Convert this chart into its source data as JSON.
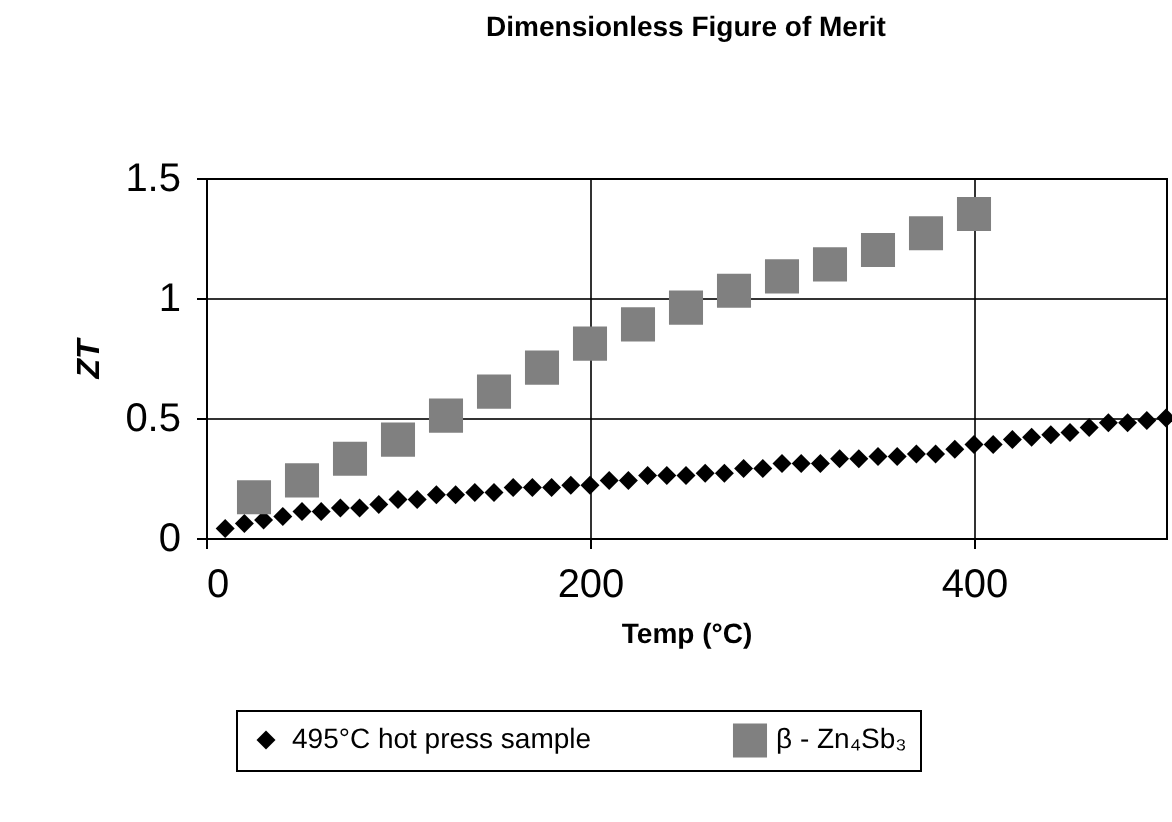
{
  "chart_data": {
    "type": "scatter",
    "title": "Dimensionless Figure of Merit",
    "xlabel": "Temp (°C)",
    "ylabel": "ZT",
    "xlim": [
      0,
      500
    ],
    "xticks": [
      0,
      200,
      400
    ],
    "ylim": [
      0,
      1.5
    ],
    "yticks": [
      0,
      0.5,
      1,
      1.5
    ],
    "grid": true,
    "legend": "bottom",
    "series": [
      {
        "name": "495°C hot press sample",
        "color": "#000000",
        "marker": "diamond",
        "x": [
          10,
          20,
          30,
          40,
          50,
          60,
          70,
          80,
          90,
          100,
          110,
          120,
          130,
          140,
          150,
          160,
          170,
          180,
          190,
          200,
          210,
          220,
          230,
          240,
          250,
          260,
          270,
          280,
          290,
          300,
          310,
          320,
          330,
          340,
          350,
          360,
          370,
          380,
          390,
          400,
          410,
          420,
          430,
          440,
          450,
          460,
          470,
          480,
          490,
          500
        ],
        "values": [
          0.04,
          0.06,
          0.075,
          0.09,
          0.11,
          0.11,
          0.125,
          0.125,
          0.14,
          0.16,
          0.16,
          0.18,
          0.18,
          0.19,
          0.19,
          0.21,
          0.21,
          0.21,
          0.22,
          0.22,
          0.24,
          0.24,
          0.26,
          0.26,
          0.26,
          0.27,
          0.27,
          0.29,
          0.29,
          0.31,
          0.31,
          0.31,
          0.33,
          0.33,
          0.34,
          0.34,
          0.35,
          0.35,
          0.37,
          0.39,
          0.39,
          0.41,
          0.42,
          0.43,
          0.44,
          0.46,
          0.48,
          0.48,
          0.49,
          0.5
        ]
      },
      {
        "name": "β - Zn₄Sb₃",
        "color": "#808080",
        "marker": "square",
        "x": [
          25,
          50,
          75,
          100,
          125,
          150,
          175,
          200,
          225,
          250,
          275,
          300,
          325,
          350,
          375,
          400
        ],
        "values": [
          0.17,
          0.24,
          0.33,
          0.41,
          0.51,
          0.61,
          0.71,
          0.81,
          0.89,
          0.96,
          1.03,
          1.09,
          1.14,
          1.2,
          1.27,
          1.35
        ]
      }
    ]
  }
}
